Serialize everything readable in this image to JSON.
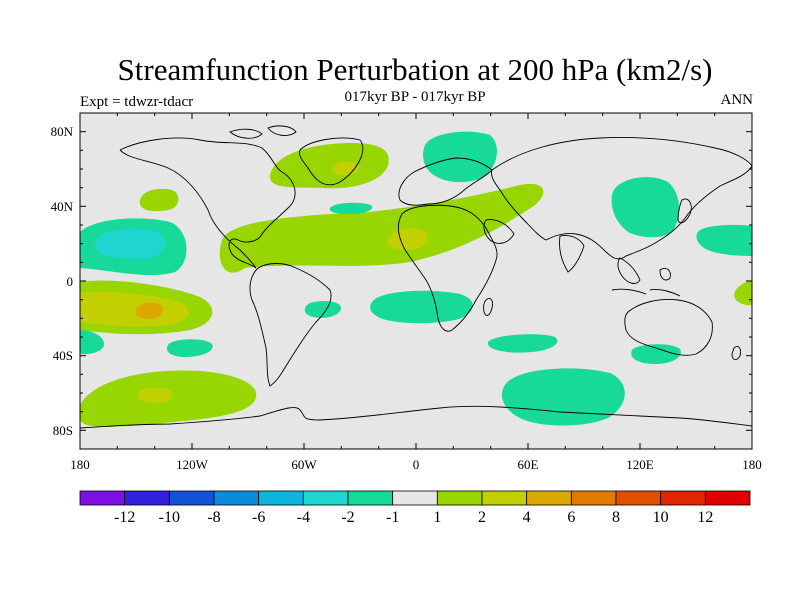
{
  "title": "Streamfunction Perturbation at 200 hPa (km2/s)",
  "subtitle": "017kyr BP - 017kyr BP",
  "expt": "Expt = tdwzr-tdacr",
  "season": "ANN",
  "axes": {
    "lat_ticks": [
      "80N",
      "40N",
      "0",
      "40S",
      "80S"
    ],
    "lon_ticks": [
      "180",
      "120W",
      "60W",
      "0",
      "60E",
      "120E",
      "180"
    ]
  },
  "colorbar": {
    "labels": [
      "-12",
      "-10",
      "-8",
      "-6",
      "-4",
      "-2",
      "-1",
      "1",
      "2",
      "4",
      "6",
      "8",
      "10",
      "12"
    ],
    "colors": [
      "#7d11e3",
      "#3322dd",
      "#1053d6",
      "#0d8bd9",
      "#0cb5d9",
      "#1ed6cf",
      "#16d99a",
      "#e6e6e6",
      "#97d600",
      "#c2cf00",
      "#dba800",
      "#e07a00",
      "#e04f00",
      "#e02500",
      "#e00000"
    ]
  },
  "colors": {
    "background_field": "#e6e6e6",
    "coastline": "#000000"
  }
}
